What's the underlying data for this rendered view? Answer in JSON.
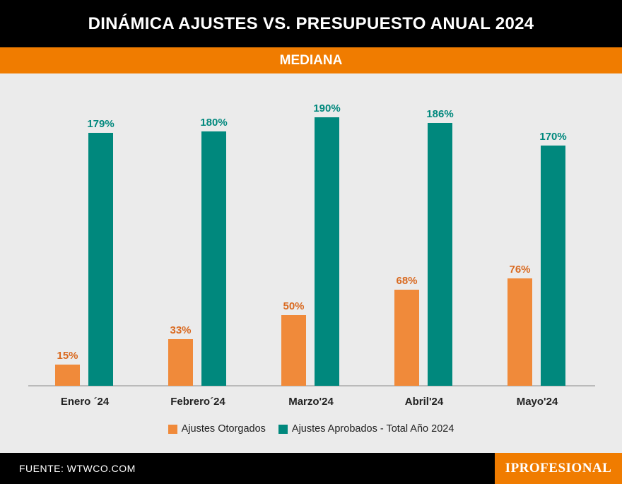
{
  "header": {
    "title": "DINÁMICA AJUSTES VS. PRESUPUESTO ANUAL 2024",
    "subtitle": "MEDIANA"
  },
  "colors": {
    "otorgados": "#f08a3a",
    "aprobados": "#00887d",
    "otorgados_label": "#d9691f",
    "aprobados_label": "#00887d"
  },
  "chart_data": {
    "type": "bar",
    "categories": [
      "Enero ´24",
      "Febrero´24",
      "Marzo'24",
      "Abril'24",
      "Mayo'24"
    ],
    "series": [
      {
        "name": "Ajustes Otorgados",
        "values": [
          15,
          33,
          50,
          68,
          76
        ],
        "labels": [
          "15%",
          "33%",
          "50%",
          "68%",
          "76%"
        ]
      },
      {
        "name": "Ajustes Aprobados - Total Año 2024",
        "values": [
          179,
          180,
          190,
          186,
          170
        ],
        "labels": [
          "179%",
          "180%",
          "190%",
          "186%",
          "170%"
        ]
      }
    ],
    "ylim": [
      0,
      200
    ],
    "grid": false,
    "legend_position": "bottom"
  },
  "legend": {
    "otorgados": "Ajustes Otorgados",
    "aprobados": "Ajustes Aprobados - Total Año 2024"
  },
  "footer": {
    "source": "FUENTE: WTWCO.COM",
    "logo": "IPROFESIONAL"
  }
}
